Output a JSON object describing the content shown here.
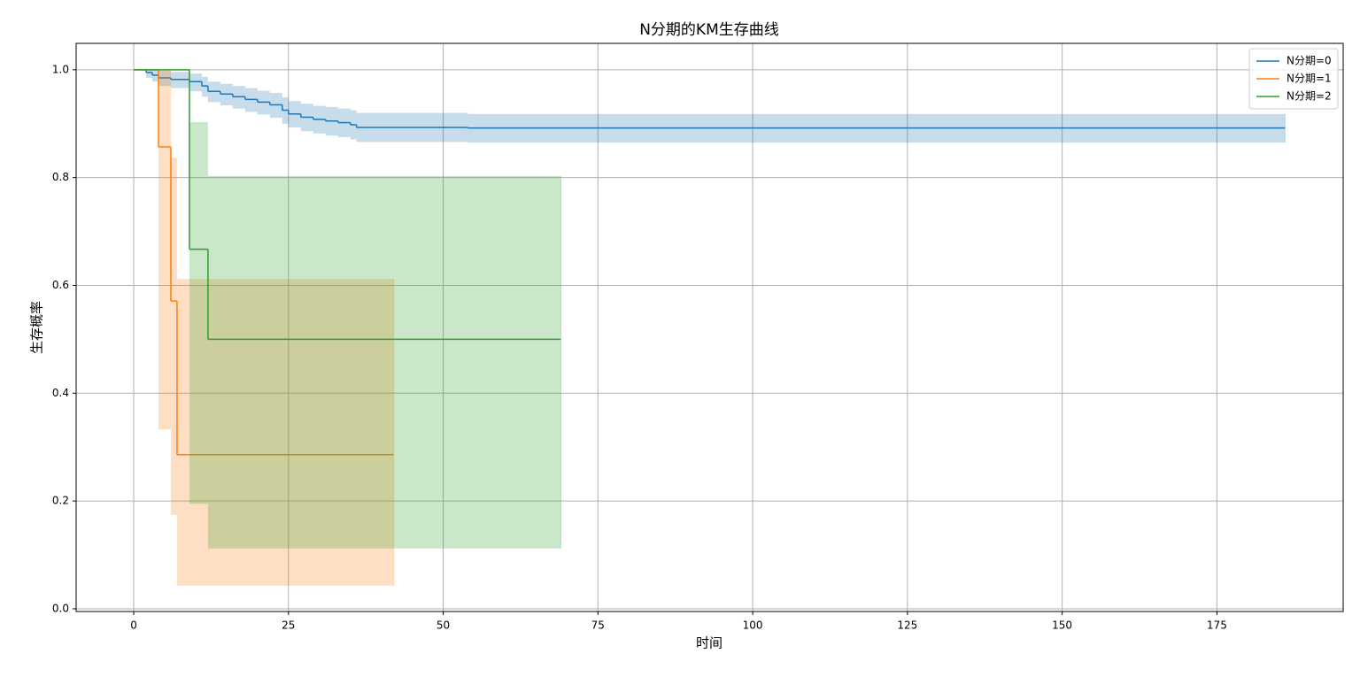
{
  "chart_data": {
    "type": "step",
    "title": "N分期的KM生存曲线",
    "x_label": "时间",
    "y_label": "生存概率",
    "xlim": [
      -9.3,
      195.4
    ],
    "ylim": [
      -0.005,
      1.049
    ],
    "xticks": [
      0,
      25,
      50,
      75,
      100,
      125,
      150,
      175
    ],
    "yticks": [
      {
        "value": 0,
        "label": "0.0"
      },
      0.2,
      0.4,
      0.6,
      0.8,
      {
        "value": 1,
        "label": "1.0"
      }
    ],
    "grid": true,
    "legend": "upper right",
    "series": [
      {
        "name": "N分期=0",
        "color": "#1f77b4",
        "x": [
          0,
          2,
          3,
          4,
          6,
          9,
          11,
          12,
          14,
          16,
          18,
          20,
          22,
          24,
          25,
          27,
          29,
          31,
          33,
          35,
          36,
          54,
          186
        ],
        "values": [
          1.0,
          0.995,
          0.99,
          0.985,
          0.982,
          0.978,
          0.97,
          0.96,
          0.955,
          0.95,
          0.945,
          0.94,
          0.935,
          0.925,
          0.918,
          0.912,
          0.908,
          0.905,
          0.902,
          0.898,
          0.893,
          0.892,
          0.892
        ],
        "upper": [
          1.0,
          1.0,
          1.0,
          0.998,
          0.996,
          0.993,
          0.987,
          0.978,
          0.974,
          0.97,
          0.966,
          0.961,
          0.957,
          0.949,
          0.942,
          0.937,
          0.933,
          0.931,
          0.928,
          0.925,
          0.92,
          0.918,
          0.918
        ],
        "lower": [
          1.0,
          0.985,
          0.978,
          0.97,
          0.966,
          0.96,
          0.95,
          0.94,
          0.934,
          0.928,
          0.922,
          0.917,
          0.911,
          0.9,
          0.893,
          0.886,
          0.882,
          0.878,
          0.875,
          0.871,
          0.866,
          0.865,
          0.865
        ]
      },
      {
        "name": "N分期=1",
        "color": "#ff7f0e",
        "x": [
          0,
          4,
          6,
          7,
          42
        ],
        "values": [
          1.0,
          0.857,
          0.571,
          0.286,
          0.286
        ],
        "upper": [
          1.0,
          1.0,
          0.837,
          0.612,
          0.612
        ],
        "lower": [
          1.0,
          0.333,
          0.174,
          0.043,
          0.043
        ]
      },
      {
        "name": "N分期=2",
        "color": "#2ca02c",
        "x": [
          0,
          9,
          12,
          69
        ],
        "values": [
          1.0,
          0.667,
          0.5,
          0.5
        ],
        "upper": [
          1.0,
          0.903,
          0.803,
          0.803
        ],
        "lower": [
          1.0,
          0.195,
          0.112,
          0.112
        ]
      }
    ]
  }
}
